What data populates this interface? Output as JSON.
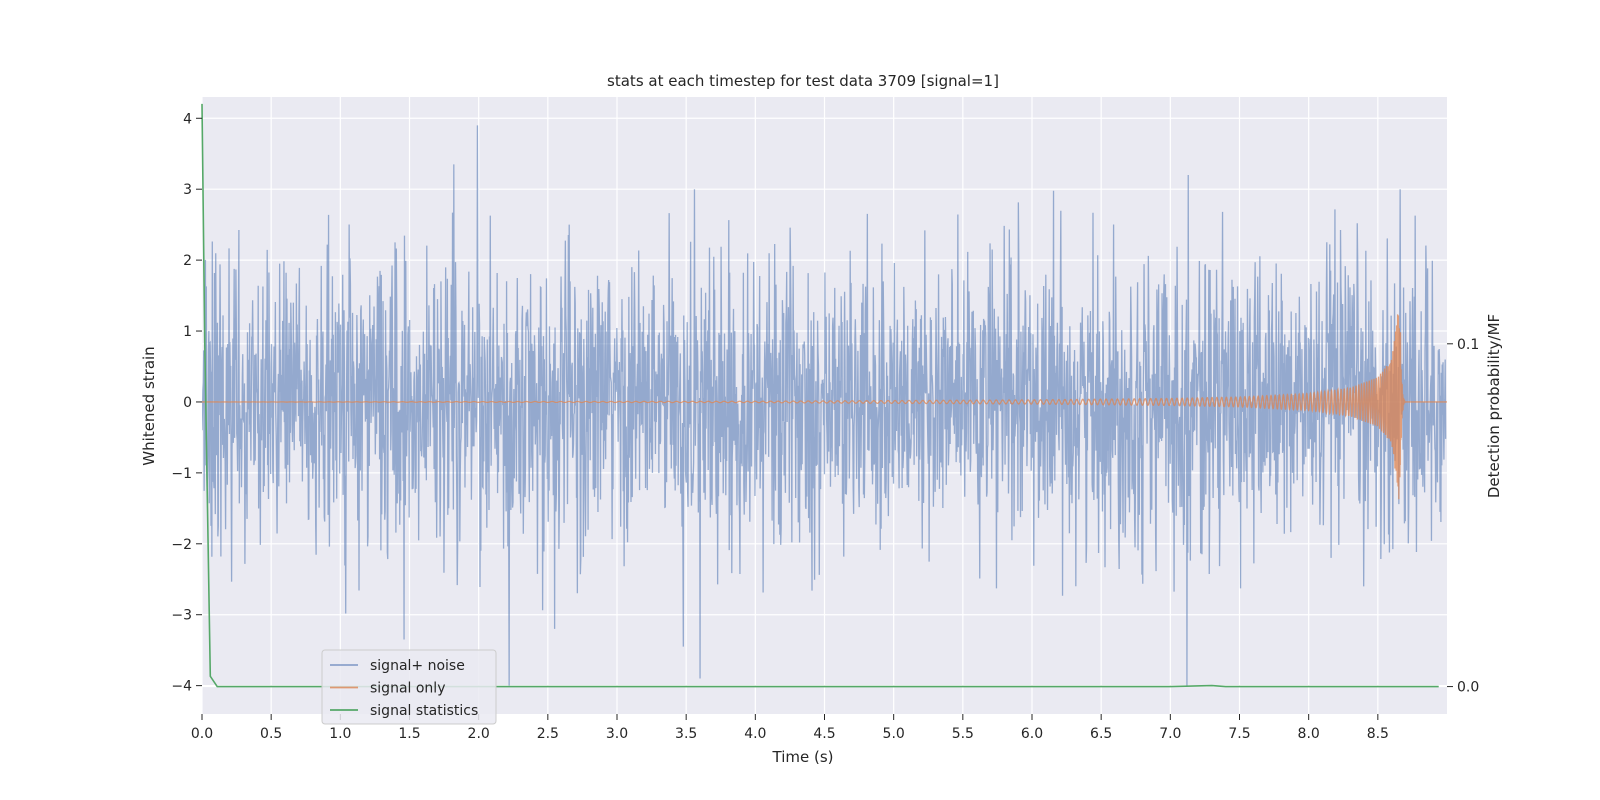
{
  "chart_data": {
    "type": "line",
    "title": "stats at each timestep for test data 3709 [signal=1]",
    "xlabel": "Time (s)",
    "ylabel": "Whitened strain",
    "y2label": "Detection probability/MF",
    "xlim": [
      0,
      9.0
    ],
    "ylim": [
      -4.4,
      4.3
    ],
    "y2lim": [
      -0.008,
      0.172
    ],
    "xticks": [
      0.0,
      0.5,
      1.0,
      1.5,
      2.0,
      2.5,
      3.0,
      3.5,
      4.0,
      4.5,
      5.0,
      5.5,
      6.0,
      6.5,
      7.0,
      7.5,
      8.0,
      8.5
    ],
    "xtick_labels": [
      "0.0",
      "0.5",
      "1.0",
      "1.5",
      "2.0",
      "2.5",
      "3.0",
      "3.5",
      "4.0",
      "4.5",
      "5.0",
      "5.5",
      "6.0",
      "6.5",
      "7.0",
      "7.5",
      "8.0",
      "8.5"
    ],
    "yticks": [
      -4,
      -3,
      -2,
      -1,
      0,
      1,
      2,
      3,
      4
    ],
    "ytick_labels": [
      "−4",
      "−3",
      "−2",
      "−1",
      "0",
      "1",
      "2",
      "3",
      "4"
    ],
    "y2ticks": [
      0.0,
      0.1
    ],
    "y2tick_labels": [
      "0.0",
      "0.1"
    ],
    "grid": true,
    "legend_position": "lower-left",
    "style": {
      "background": "#eaeaf2",
      "grid_color": "#ffffff",
      "noise_color": "#4c72b0",
      "signal_color": "#dd8452",
      "stats_color": "#55a868"
    },
    "series": [
      {
        "name": "signal+ noise",
        "axis": "left",
        "description": "whitened strain samples, approximately unit-variance noise",
        "x_range": [
          0,
          8.99
        ],
        "n_samples": 2900,
        "std": 1.0,
        "extremes": [
          [
            1.82,
            3.35
          ],
          [
            1.99,
            3.9
          ],
          [
            3.56,
            3.0
          ],
          [
            7.13,
            3.2
          ],
          [
            8.66,
            3.0
          ],
          [
            2.22,
            -4.0
          ],
          [
            3.6,
            -3.9
          ],
          [
            7.12,
            -4.0
          ],
          [
            1.46,
            -3.35
          ],
          [
            3.48,
            -3.45
          ],
          [
            2.55,
            -3.2
          ]
        ]
      },
      {
        "name": "signal only",
        "axis": "left",
        "description": "chirp waveform: near zero, growing amplitude and frequency until merger",
        "merger_time": 8.66,
        "peak_amplitude": 1.5,
        "x": [
          0.0,
          4.0,
          5.0,
          6.0,
          7.0,
          7.5,
          8.0,
          8.3,
          8.5,
          8.6,
          8.66,
          8.7,
          8.99
        ],
        "envelope": [
          0.0,
          0.01,
          0.02,
          0.03,
          0.05,
          0.07,
          0.12,
          0.2,
          0.35,
          0.6,
          1.5,
          0.0,
          0.0
        ]
      },
      {
        "name": "signal statistics",
        "axis": "right",
        "x": [
          0.0,
          0.02,
          0.06,
          0.11,
          0.5,
          1.0,
          2.0,
          3.0,
          4.0,
          5.0,
          6.0,
          7.0,
          7.3,
          7.4,
          8.0,
          8.5,
          8.94
        ],
        "values": [
          0.17,
          0.1,
          0.003,
          0.0,
          0.0,
          0.0,
          0.0,
          0.0,
          0.0,
          0.0,
          0.0,
          0.0,
          0.0003,
          0.0,
          0.0,
          0.0,
          0.0
        ]
      }
    ]
  }
}
